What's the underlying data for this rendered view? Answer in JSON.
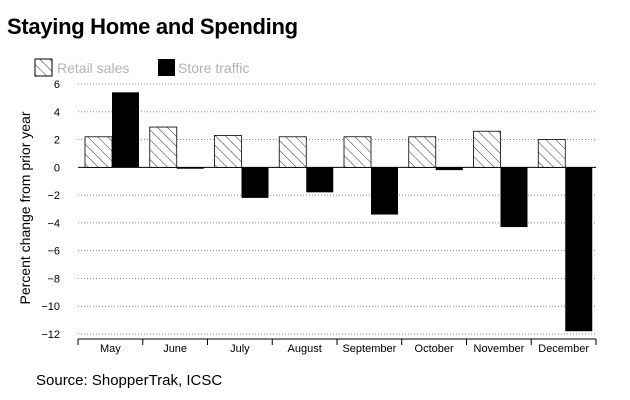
{
  "chart_data": {
    "type": "bar",
    "title": "Staying Home and Spending",
    "source": "Source: ShopperTrak, ICSC",
    "ylabel": "Percent change from prior year",
    "xlabel": "",
    "ylim": [
      -12,
      6
    ],
    "yticks": [
      6,
      4,
      2,
      0,
      -2,
      -4,
      -6,
      -8,
      -10,
      -12
    ],
    "ytick_labels": [
      "6",
      "4",
      "2",
      "0",
      "−2",
      "−4",
      "−6",
      "−8",
      "−10",
      "−12"
    ],
    "grid": true,
    "legend_position": "top-left",
    "categories": [
      "May",
      "June",
      "July",
      "August",
      "September",
      "October",
      "November",
      "December"
    ],
    "series": [
      {
        "name": "Retail sales",
        "style": "hatched",
        "values": [
          2.2,
          2.9,
          2.3,
          2.2,
          2.2,
          2.2,
          2.6,
          2.0
        ]
      },
      {
        "name": "Store traffic",
        "style": "solid",
        "values": [
          5.4,
          -0.1,
          -2.2,
          -1.8,
          -3.4,
          -0.2,
          -4.3,
          -11.8
        ]
      }
    ]
  }
}
